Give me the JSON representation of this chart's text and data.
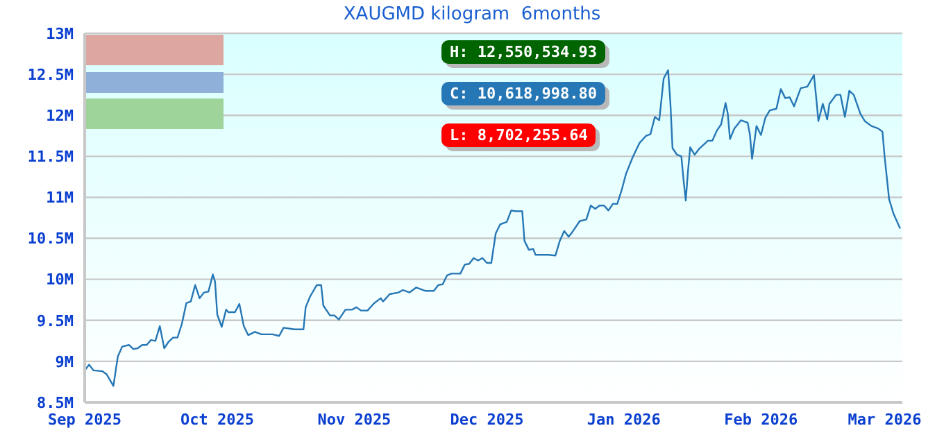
{
  "chart_data": {
    "type": "line",
    "title": "XAUGMD kilogram  6months",
    "annotations": [
      "H: 12,550,534.93",
      "C: 10,618,998.80",
      "L: 8,702,255.64"
    ],
    "x": [
      "2025-09-01",
      "2025-09-02",
      "2025-09-03",
      "2025-09-05",
      "2025-09-06",
      "2025-09-07T12:00",
      "2025-09-08T12:00",
      "2025-09-09T12:00",
      "2025-09-11",
      "2025-09-12",
      "2025-09-13",
      "2025-09-14",
      "2025-09-15",
      "2025-09-16",
      "2025-09-17",
      "2025-09-18",
      "2025-09-19",
      "2025-09-20",
      "2025-09-21",
      "2025-09-22",
      "2025-09-23",
      "2025-09-24",
      "2025-09-25",
      "2025-09-26",
      "2025-09-27",
      "2025-09-28",
      "2025-09-29",
      "2025-09-30",
      "2025-09-30T12:00",
      "2025-10-01",
      "2025-10-02",
      "2025-10-03",
      "2025-10-03T12:00",
      "2025-10-05",
      "2025-10-06",
      "2025-10-07",
      "2025-10-08",
      "2025-10-09T12:00",
      "2025-10-11",
      "2025-10-13T12:00",
      "2025-10-15",
      "2025-10-16",
      "2025-10-18T12:00",
      "2025-10-20T12:00",
      "2025-10-21",
      "2025-10-22",
      "2025-10-23T12:00",
      "2025-10-24T12:00",
      "2025-10-25",
      "2025-10-26T12:00",
      "2025-10-27T12:00",
      "2025-10-28T12:00",
      "2025-10-30",
      "2025-10-31T12:00",
      "2025-11-01T12:00",
      "2025-11-02T12:00",
      "2025-11-04",
      "2025-11-05T12:00",
      "2025-11-07",
      "2025-11-07T12:00",
      "2025-11-09",
      "2025-11-11",
      "2025-11-12",
      "2025-11-13T12:00",
      "2025-11-15",
      "2025-11-17",
      "2025-11-19",
      "2025-11-20",
      "2025-11-21",
      "2025-11-22",
      "2025-11-23",
      "2025-11-25",
      "2025-11-26",
      "2025-11-27",
      "2025-11-28",
      "2025-11-29",
      "2025-11-30",
      "2025-12-01",
      "2025-12-02",
      "2025-12-03",
      "2025-12-04",
      "2025-12-05T12:00",
      "2025-12-06T12:00",
      "2025-12-07T12:00",
      "2025-12-09",
      "2025-12-09T12:00",
      "2025-12-10T12:00",
      "2025-12-11T12:00",
      "2025-12-12",
      "2025-12-15",
      "2025-12-16T12:00",
      "2025-12-17T12:00",
      "2025-12-18T12:00",
      "2025-12-19T12:00",
      "2025-12-20T12:00",
      "2025-12-22",
      "2025-12-23T12:00",
      "2025-12-24T12:00",
      "2025-12-25T12:00",
      "2025-12-26T12:00",
      "2025-12-27T12:00",
      "2025-12-28T12:00",
      "2025-12-29T12:00",
      "2025-12-30T12:00",
      "2025-12-31T12:00",
      "2026-01-01T12:00",
      "2026-01-03",
      "2026-01-04T12:00",
      "2026-01-06",
      "2026-01-07",
      "2026-01-08",
      "2026-01-09",
      "2026-01-10",
      "2026-01-11",
      "2026-01-11T12:00",
      "2026-01-12",
      "2026-01-13",
      "2026-01-14",
      "2026-01-14T12:00",
      "2026-01-15",
      "2026-01-15T12:00",
      "2026-01-16",
      "2026-01-17",
      "2026-01-18",
      "2026-01-20",
      "2026-01-21",
      "2026-01-22",
      "2026-01-23",
      "2026-01-24",
      "2026-01-24T12:00",
      "2026-01-25",
      "2026-01-26",
      "2026-01-27T12:00",
      "2026-01-29",
      "2026-01-29T12:00",
      "2026-01-30",
      "2026-01-31",
      "2026-02-01",
      "2026-02-02",
      "2026-02-03",
      "2026-02-04T12:00",
      "2026-02-05T12:00",
      "2026-02-06T12:00",
      "2026-02-07T12:00",
      "2026-02-08T12:00",
      "2026-02-10",
      "2026-02-11T12:00",
      "2026-02-13",
      "2026-02-13T12:00",
      "2026-02-14",
      "2026-02-15",
      "2026-02-16",
      "2026-02-16T12:00",
      "2026-02-18",
      "2026-02-19",
      "2026-02-20",
      "2026-02-21",
      "2026-02-22",
      "2026-02-23T12:00",
      "2026-02-24T12:00",
      "2026-02-26",
      "2026-02-27T12:00",
      "2026-02-28T12:00",
      "2026-03-01",
      "2026-03-02",
      "2026-03-03",
      "2026-03-04T12:00"
    ],
    "series": [
      {
        "color": "#2677b5",
        "values": [
          8.89,
          8.96,
          8.89,
          8.88,
          8.84,
          8.7,
          9.06,
          9.18,
          9.2,
          9.15,
          9.16,
          9.2,
          9.2,
          9.26,
          9.25,
          9.43,
          9.16,
          9.24,
          9.29,
          9.29,
          9.46,
          9.71,
          9.73,
          9.93,
          9.77,
          9.84,
          9.85,
          10.06,
          9.97,
          9.57,
          9.42,
          9.63,
          9.6,
          9.6,
          9.7,
          9.43,
          9.32,
          9.36,
          9.33,
          9.33,
          9.31,
          9.41,
          9.39,
          9.39,
          9.66,
          9.79,
          9.93,
          9.93,
          9.68,
          9.56,
          9.56,
          9.51,
          9.63,
          9.63,
          9.66,
          9.62,
          9.62,
          9.71,
          9.77,
          9.73,
          9.82,
          9.84,
          9.87,
          9.84,
          9.9,
          9.86,
          9.86,
          9.93,
          9.94,
          10.05,
          10.07,
          10.07,
          10.18,
          10.19,
          10.26,
          10.23,
          10.26,
          10.2,
          10.2,
          10.56,
          10.67,
          10.7,
          10.84,
          10.83,
          10.83,
          10.47,
          10.36,
          10.37,
          10.3,
          10.3,
          10.29,
          10.47,
          10.59,
          10.52,
          10.59,
          10.71,
          10.73,
          10.9,
          10.86,
          10.9,
          10.9,
          10.84,
          10.92,
          10.92,
          11.09,
          11.29,
          11.49,
          11.66,
          11.75,
          11.77,
          11.98,
          11.94,
          12.45,
          12.55,
          12.17,
          11.6,
          11.52,
          11.5,
          11.21,
          10.96,
          11.32,
          11.61,
          11.52,
          11.59,
          11.69,
          11.69,
          11.81,
          11.89,
          12.15,
          12.02,
          11.71,
          11.84,
          11.94,
          11.91,
          11.77,
          11.47,
          11.87,
          11.76,
          11.97,
          12.06,
          12.08,
          12.32,
          12.21,
          12.22,
          12.11,
          12.33,
          12.35,
          12.49,
          12.22,
          11.93,
          12.14,
          11.95,
          12.14,
          12.25,
          12.25,
          11.98,
          12.3,
          12.25,
          12.02,
          11.93,
          11.87,
          11.84,
          11.8,
          11.49,
          10.98,
          10.8,
          10.62
        ]
      }
    ],
    "xlim": [
      "2025-09-01",
      "2026-03-05"
    ],
    "xticks": [
      {
        "value": "2025-09-01",
        "label": "Sep 2025"
      },
      {
        "value": "2025-10-01",
        "label": "Oct 2025"
      },
      {
        "value": "2025-11-01",
        "label": "Nov 2025"
      },
      {
        "value": "2025-12-01",
        "label": "Dec 2025"
      },
      {
        "value": "2026-01-01",
        "label": "Jan 2026"
      },
      {
        "value": "2026-02-01",
        "label": "Feb 2026"
      },
      {
        "value": "2026-03-01",
        "label": "Mar 2026"
      }
    ],
    "ylim": [
      8.5,
      13
    ],
    "yticks": [
      {
        "value": 8.5,
        "label": "8.5M"
      },
      {
        "value": 9,
        "label": "9M"
      },
      {
        "value": 9.5,
        "label": "9.5M"
      },
      {
        "value": 10,
        "label": "10M"
      },
      {
        "value": 10.5,
        "label": "10.5M"
      },
      {
        "value": 11,
        "label": "11M"
      },
      {
        "value": 11.5,
        "label": "11.5M"
      },
      {
        "value": 12,
        "label": "12M"
      },
      {
        "value": 12.5,
        "label": "12.5M"
      },
      {
        "value": 13,
        "label": "13M"
      }
    ],
    "grid": "y",
    "marker": "none",
    "line_style": "solid"
  }
}
